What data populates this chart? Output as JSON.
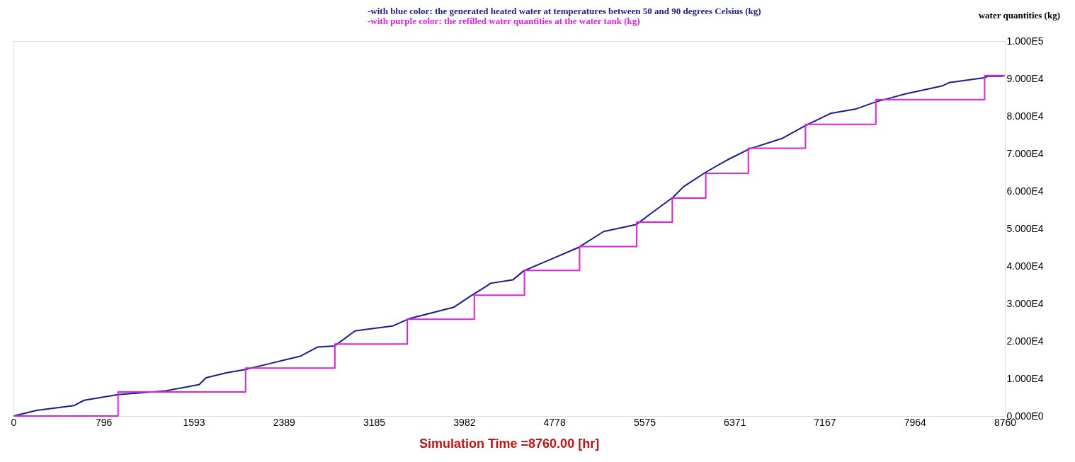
{
  "chart_data": {
    "type": "line",
    "xlabel": "Simulation Time =8760.00 [hr]",
    "ylabel": "water quantities (kg)",
    "xlim": [
      0,
      8760
    ],
    "xticks": [
      0,
      796,
      1593,
      2389,
      3185,
      3982,
      4778,
      5575,
      6371,
      7167,
      7964,
      8760
    ],
    "ylim": [
      0,
      100000
    ],
    "yticks": [
      {
        "value": 0,
        "label": "0.000E0"
      },
      {
        "value": 10000,
        "label": "1.000E4"
      },
      {
        "value": 20000,
        "label": "2.000E4"
      },
      {
        "value": 30000,
        "label": "3.000E4"
      },
      {
        "value": 40000,
        "label": "4.000E4"
      },
      {
        "value": 50000,
        "label": "5.000E4"
      },
      {
        "value": 60000,
        "label": "6.000E4"
      },
      {
        "value": 70000,
        "label": "7.000E4"
      },
      {
        "value": 80000,
        "label": "8.000E4"
      },
      {
        "value": 90000,
        "label": "9.000E4"
      },
      {
        "value": 100000,
        "label": "1.000E5"
      }
    ],
    "grid": false,
    "legend": "top",
    "series": [
      {
        "name": "-with blue color: the generated heated water at temperatures between 50 and 90 degrees Celsius (kg)",
        "color": "#1c1c8c",
        "x": [
          0,
          206,
          536,
          625,
          924,
          1343,
          1642,
          1700,
          1880,
          2049,
          2240,
          2539,
          2689,
          2838,
          3018,
          3350,
          3500,
          3890,
          4035,
          4183,
          4216,
          4412,
          4508,
          4989,
          5215,
          5505,
          5633,
          5826,
          5923,
          6116,
          6308,
          6500,
          6790,
          6993,
          7219,
          7446,
          7622,
          7880,
          8204,
          8266,
          8574,
          8612,
          8746
        ],
        "values": [
          0,
          1500,
          2800,
          4200,
          5700,
          6700,
          8400,
          10200,
          11500,
          12400,
          13800,
          16000,
          18400,
          18700,
          22700,
          24000,
          26000,
          29000,
          31900,
          34700,
          35400,
          36300,
          38700,
          44900,
          49200,
          51100,
          54000,
          58300,
          61200,
          65000,
          68300,
          71200,
          74000,
          77400,
          80700,
          81900,
          83800,
          85900,
          88000,
          88900,
          90200,
          90600,
          90600
        ]
      },
      {
        "name": "-with purple color: the refilled water quantities at the water tank (kg)",
        "color": "#e020e0",
        "type": "step",
        "x": [
          0,
          924,
          2051,
          2840,
          3480,
          4072,
          4515,
          5002,
          5507,
          5821,
          6117,
          6493,
          6998,
          7620,
          8581,
          8760
        ],
        "values": [
          0,
          6400,
          12800,
          19200,
          25800,
          32200,
          38800,
          45200,
          51700,
          58100,
          64700,
          71400,
          77800,
          84400,
          90800,
          90800
        ]
      }
    ]
  }
}
